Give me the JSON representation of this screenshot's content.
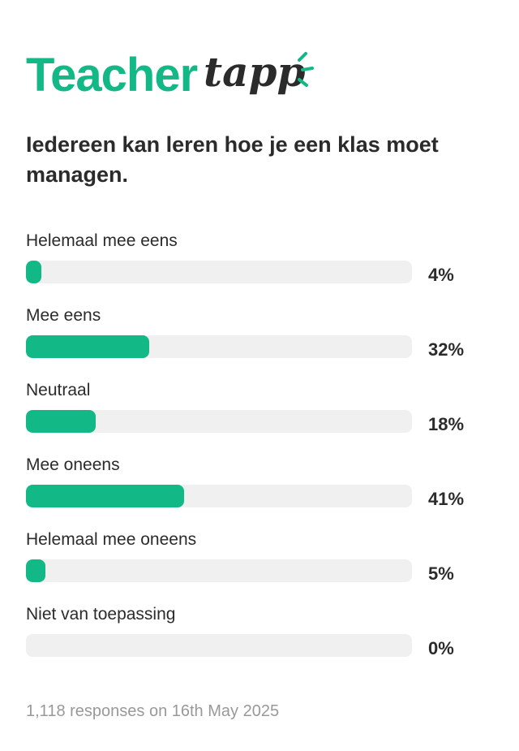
{
  "brand": {
    "part1": "Teacher",
    "part2": "tapp",
    "accent_color": "#12b886",
    "text_color": "#2b2b2b"
  },
  "question": "Iedereen kan leren hoe je een klas moet managen.",
  "chart_data": {
    "type": "bar",
    "orientation": "horizontal",
    "categories": [
      "Helemaal mee eens",
      "Mee eens",
      "Neutraal",
      "Mee oneens",
      "Helemaal mee oneens",
      "Niet van toepassing"
    ],
    "values": [
      4,
      32,
      18,
      41,
      5,
      0
    ],
    "value_labels": [
      "4%",
      "32%",
      "18%",
      "41%",
      "5%",
      "0%"
    ],
    "xlim": [
      0,
      100
    ],
    "grid": false,
    "bar_color": "#12b886",
    "track_color": "#f0f0f0"
  },
  "footer": "1,118 responses on 16th May 2025"
}
